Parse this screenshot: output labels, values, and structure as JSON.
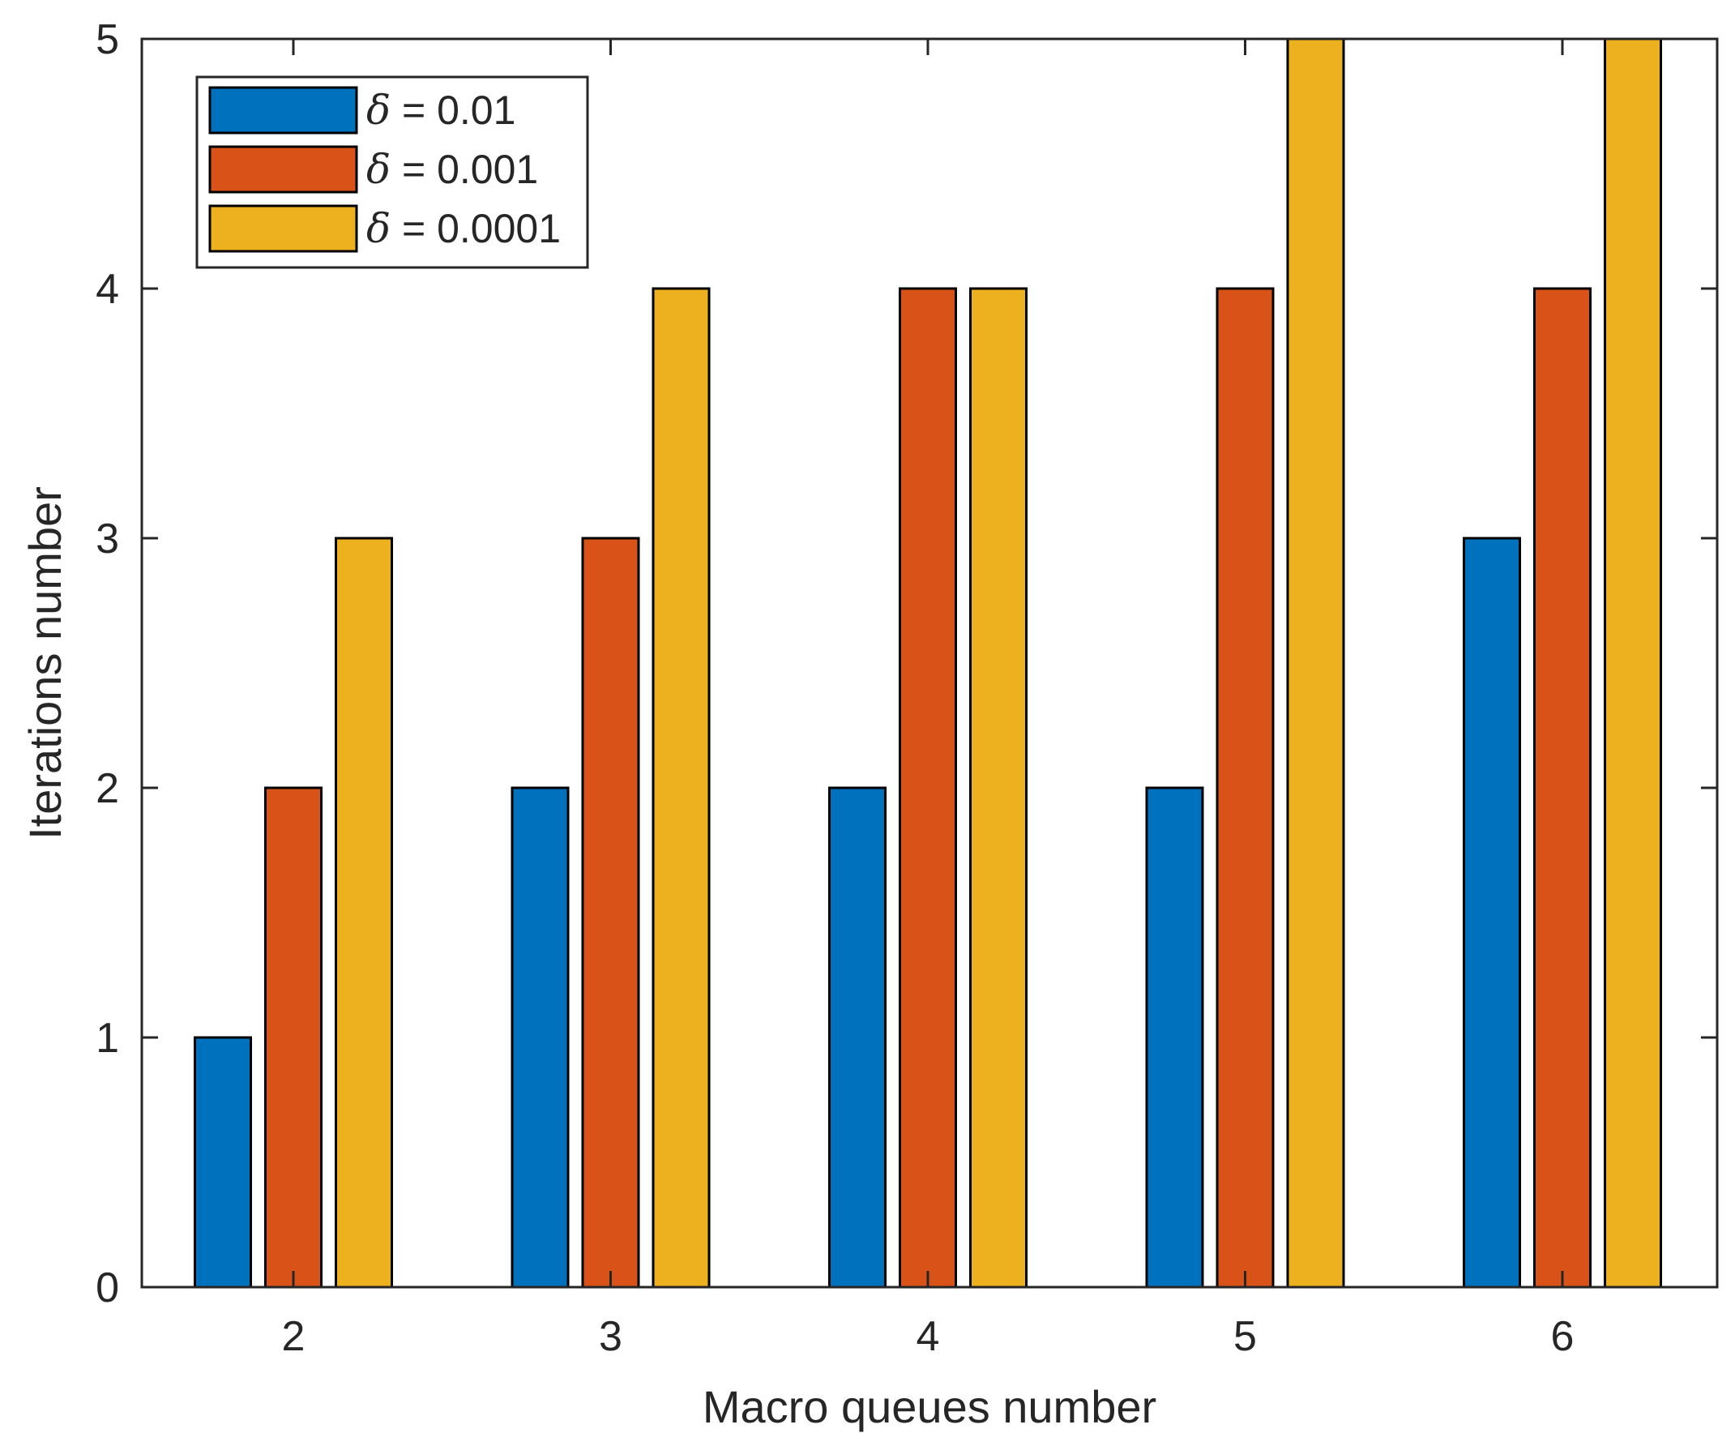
{
  "chart_data": {
    "type": "bar",
    "title": "",
    "xlabel": "Macro queues number",
    "ylabel": "Iterations number",
    "categories": [
      "2",
      "3",
      "4",
      "5",
      "6"
    ],
    "ylim": [
      0,
      5
    ],
    "yticks": [
      "0",
      "1",
      "2",
      "3",
      "4",
      "5"
    ],
    "grid": false,
    "legend_position": "top-left",
    "series": [
      {
        "name": "δ = 0.01",
        "symbol": "δ",
        "value_text": " = 0.01",
        "color": "#0072BD",
        "values": [
          1,
          2,
          2,
          2,
          3
        ]
      },
      {
        "name": "δ = 0.001",
        "symbol": "δ",
        "value_text": " = 0.001",
        "color": "#D95319",
        "values": [
          2,
          3,
          4,
          4,
          4
        ]
      },
      {
        "name": "δ = 0.0001",
        "symbol": "δ",
        "value_text": " = 0.0001",
        "color": "#EDB120",
        "values": [
          3,
          4,
          4,
          5,
          5
        ]
      }
    ]
  }
}
